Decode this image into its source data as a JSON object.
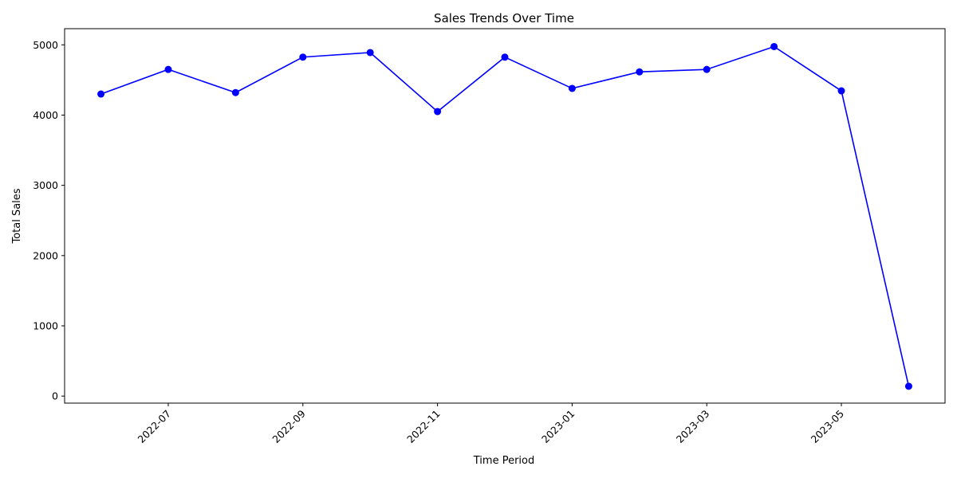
{
  "chart_data": {
    "type": "line",
    "title": "Sales Trends Over Time",
    "xlabel": "Time Period",
    "ylabel": "Total Sales",
    "ylim": [
      -100,
      5230
    ],
    "yticks": [
      0,
      1000,
      2000,
      3000,
      4000,
      5000
    ],
    "xticks": [
      "2022-07",
      "2022-09",
      "2022-11",
      "2023-01",
      "2023-03",
      "2023-05"
    ],
    "grid": false,
    "color": "#0000ff",
    "series": [
      {
        "x": [
          "2022-06",
          "2022-07",
          "2022-08",
          "2022-09",
          "2022-10",
          "2022-11",
          "2022-12",
          "2023-01",
          "2023-02",
          "2023-03",
          "2023-04",
          "2023-05",
          "2023-06"
        ],
        "values": [
          4300,
          4650,
          4320,
          4825,
          4890,
          4050,
          4825,
          4380,
          4615,
          4650,
          4975,
          4345,
          140
        ]
      }
    ]
  }
}
